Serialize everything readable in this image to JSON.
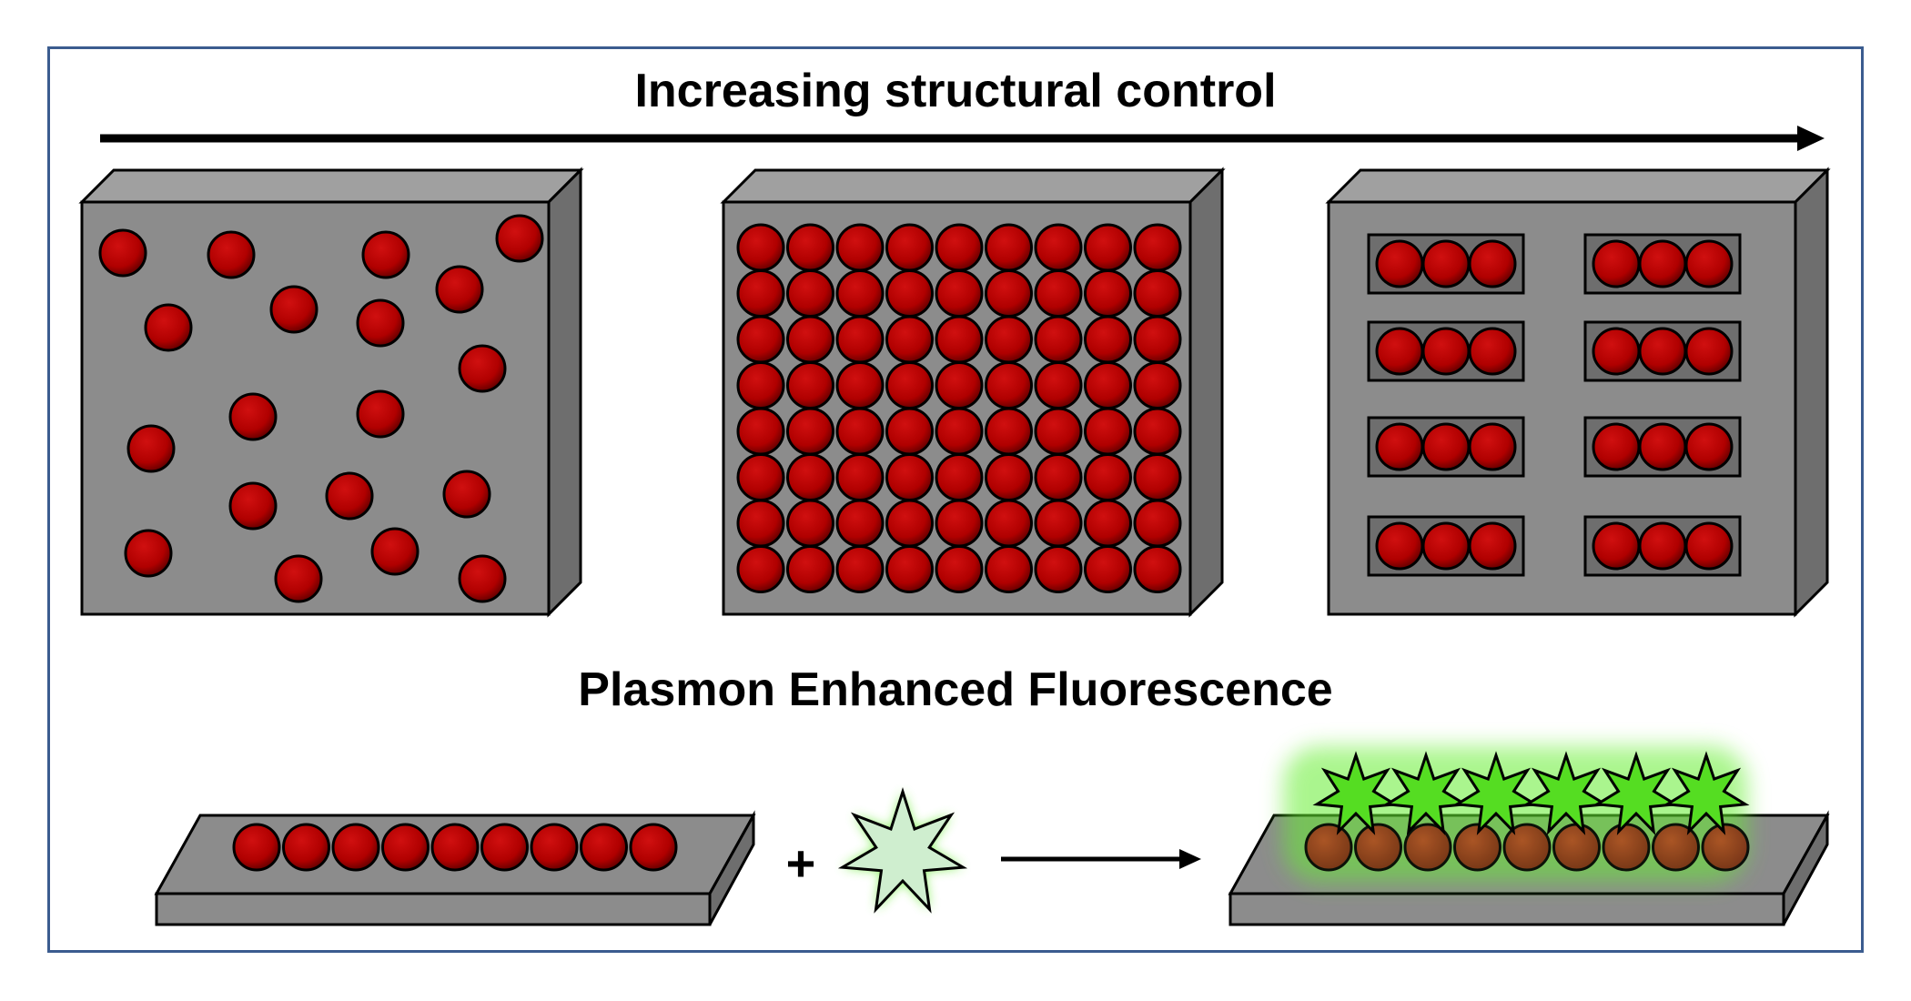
{
  "diagram": {
    "top_heading": "Increasing structural control",
    "bottom_heading": "Plasmon Enhanced Fluorescence",
    "plus_sign": "+",
    "panels": [
      "random-nanoparticles",
      "dense-array",
      "patterned-trimers"
    ],
    "colors": {
      "block_face": "#8c8c8c",
      "block_side": "#6e6e6e",
      "block_top": "#a0a0a0",
      "particle": "#b00000",
      "particle_dim": "#8a3a1a",
      "fluorophore": "#cfeecf",
      "fluorophore_bright": "#55dd22",
      "glow": "#66ee33",
      "frame": "#3b5c8f"
    }
  }
}
